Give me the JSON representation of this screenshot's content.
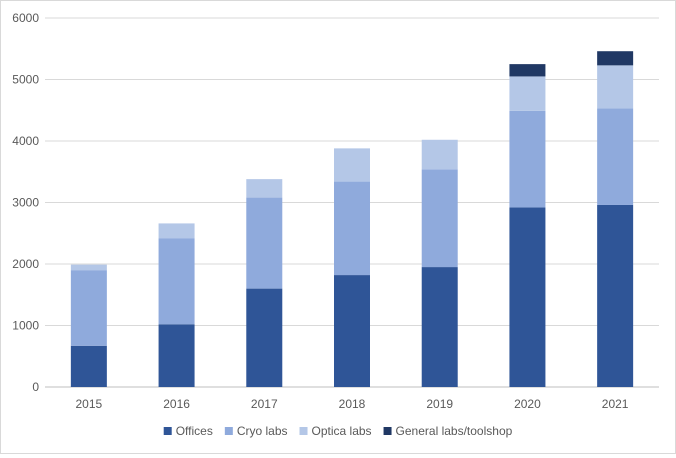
{
  "chart_data": {
    "type": "bar",
    "stacked": true,
    "title": "",
    "xlabel": "",
    "ylabel": "",
    "ylim": [
      0,
      6000
    ],
    "yticks": [
      0,
      1000,
      2000,
      3000,
      4000,
      5000,
      6000
    ],
    "grid": true,
    "legend_position": "bottom",
    "categories": [
      "2015",
      "2016",
      "2017",
      "2018",
      "2019",
      "2020",
      "2021"
    ],
    "series": [
      {
        "name": "Offices",
        "color": "#2f5597",
        "values": [
          670,
          1020,
          1600,
          1820,
          1950,
          2920,
          2960
        ]
      },
      {
        "name": "Cryo labs",
        "color": "#8faadc",
        "values": [
          1230,
          1400,
          1480,
          1520,
          1590,
          1570,
          1570
        ]
      },
      {
        "name": "Optica labs",
        "color": "#b4c7e7",
        "values": [
          90,
          240,
          300,
          540,
          480,
          560,
          700
        ]
      },
      {
        "name": "General labs/toolshop",
        "color": "#203864",
        "values": [
          0,
          0,
          0,
          0,
          0,
          200,
          230
        ]
      }
    ]
  }
}
